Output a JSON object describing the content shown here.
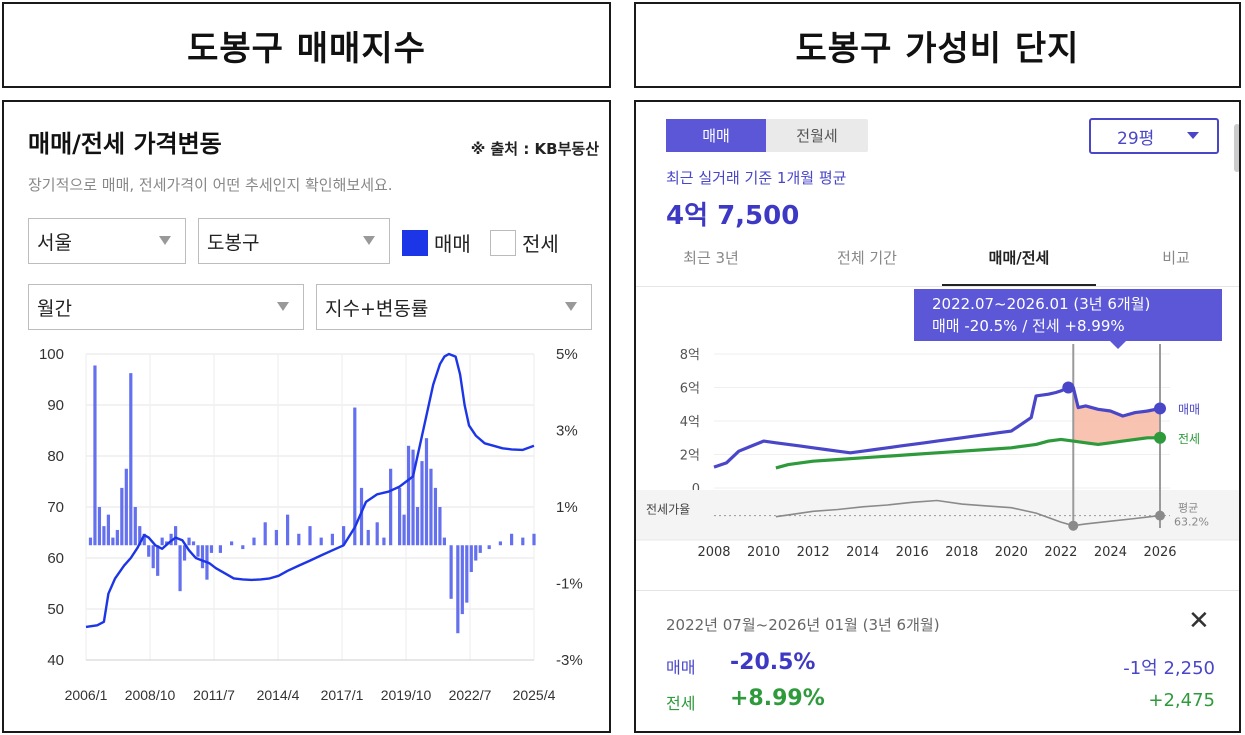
{
  "headers": {
    "left": "도봉구 매매지수",
    "right": "도봉구 가성비 단지"
  },
  "kb_panel": {
    "title": "매매/전세 가격변동",
    "source": "※ 출처 : KB부동산",
    "subtitle": "장기적으로 매매, 전세가격이 어떤 추세인지 확인해보세요.",
    "selects": {
      "region": "서울",
      "district": "도봉구",
      "period": "월간",
      "mode": "지수+변동률"
    },
    "checkboxes": {
      "sale": "매매",
      "jeonse": "전세"
    }
  },
  "apt_panel": {
    "toggle": {
      "sale": "매매",
      "rent": "전월세"
    },
    "size_select": "29평",
    "caption": "최근 실거래 기준 1개월 평균",
    "price": "4억 7,500",
    "tabs": [
      "최근 3년",
      "전체 기간",
      "매매/전세",
      "비교"
    ],
    "tooltip": {
      "line1": "2022.07~2026.01 (3년 6개월)",
      "line2": "매매 -20.5%  /  전세 +8.99%"
    },
    "summary": {
      "period": "2022년 07월~2026년 01월 (3년 6개월)",
      "close": "✕",
      "sale_label": "매매",
      "sale_pct": "-20.5%",
      "sale_amount": "-1억 2,250",
      "jeonse_label": "전세",
      "jeonse_pct": "+8.99%",
      "jeonse_amount": "+2,475"
    }
  },
  "colors": {
    "kb_blue": "#1c35e6",
    "bar_blue": "#6470ee",
    "sale_purple": "#4a46c8",
    "jeonse_green": "#2e9a3c",
    "gap_fill": "#f7b9a2",
    "ratio_gray": "#8a8a8a"
  },
  "chart_data": [
    {
      "type": "line",
      "name": "kb-index-chart",
      "x_tick_labels": [
        "2006/1",
        "2008/10",
        "2011/7",
        "2014/4",
        "2017/1",
        "2019/10",
        "2022/7",
        "2025/4"
      ],
      "y_left_ticks": [
        "100",
        "90",
        "80",
        "70",
        "60",
        "50",
        "40"
      ],
      "y_right_ticks": [
        "5%",
        "3%",
        "1%",
        "-1%",
        "-3%"
      ],
      "ylim_left": [
        40,
        100
      ],
      "ylim_right": [
        -3,
        5
      ],
      "xlim": [
        2006.0,
        2026.0
      ],
      "grid": true,
      "series": [
        {
          "kind": "line",
          "x": [
            2006.0,
            2006.5,
            2006.8,
            2007.0,
            2007.3,
            2007.7,
            2008.0,
            2008.3,
            2008.6,
            2008.8,
            2009.1,
            2009.4,
            2009.7,
            2010.0,
            2010.3,
            2010.6,
            2010.9,
            2011.2,
            2011.5,
            2011.8,
            2012.2,
            2012.6,
            2013.0,
            2013.4,
            2013.8,
            2014.2,
            2014.6,
            2015.0,
            2015.5,
            2016.0,
            2016.5,
            2017.0,
            2017.5,
            2018.0,
            2018.5,
            2019.0,
            2019.5,
            2020.0,
            2020.3,
            2020.6,
            2020.9,
            2021.2,
            2021.5,
            2021.8,
            2022.0,
            2022.2,
            2022.5,
            2022.7,
            2022.9,
            2023.1,
            2023.4,
            2023.8,
            2024.2,
            2024.6,
            2025.0,
            2025.5,
            2026.0
          ],
          "values": [
            46.5,
            46.8,
            47.5,
            53.0,
            56.0,
            58.5,
            60.0,
            62.0,
            64.5,
            64.0,
            62.5,
            61.8,
            63.0,
            64.0,
            63.5,
            61.5,
            60.0,
            59.5,
            59.0,
            58.0,
            57.0,
            56.0,
            55.8,
            55.7,
            55.8,
            56.0,
            56.5,
            57.5,
            58.5,
            59.5,
            60.5,
            61.5,
            62.5,
            66.0,
            71.0,
            72.5,
            73.0,
            74.0,
            75.0,
            76.0,
            82.0,
            88.0,
            94.0,
            98.0,
            99.5,
            100.0,
            99.5,
            96.0,
            90.0,
            86.0,
            84.0,
            82.5,
            82.0,
            81.5,
            81.3,
            81.2,
            82.0
          ]
        },
        {
          "kind": "bar",
          "axis": "right",
          "x": [
            2006.2,
            2006.4,
            2006.6,
            2006.8,
            2007.0,
            2007.2,
            2007.4,
            2007.6,
            2007.8,
            2008.0,
            2008.2,
            2008.4,
            2008.6,
            2008.8,
            2009.0,
            2009.2,
            2009.4,
            2009.6,
            2009.8,
            2010.0,
            2010.2,
            2010.4,
            2010.6,
            2010.8,
            2011.0,
            2011.2,
            2011.4,
            2011.6,
            2012.0,
            2012.5,
            2013.0,
            2013.5,
            2014.0,
            2014.5,
            2015.0,
            2015.5,
            2016.0,
            2016.5,
            2017.0,
            2017.5,
            2018.0,
            2018.3,
            2018.6,
            2019.0,
            2019.3,
            2019.6,
            2020.0,
            2020.2,
            2020.4,
            2020.6,
            2020.8,
            2021.0,
            2021.2,
            2021.4,
            2021.6,
            2021.8,
            2022.0,
            2022.3,
            2022.6,
            2022.8,
            2023.0,
            2023.2,
            2023.4,
            2023.6,
            2024.0,
            2024.5,
            2025.0,
            2025.5,
            2026.0
          ],
          "values": [
            0.2,
            4.7,
            1.0,
            0.5,
            0.8,
            0.2,
            0.4,
            1.5,
            2.0,
            4.5,
            1.0,
            0.5,
            0.3,
            -0.3,
            -0.6,
            -0.8,
            0.2,
            0.1,
            0.3,
            0.5,
            -1.2,
            -0.4,
            0.2,
            0.1,
            -0.3,
            -0.6,
            -0.9,
            -0.2,
            -0.2,
            0.1,
            -0.1,
            0.2,
            0.6,
            0.4,
            0.8,
            0.3,
            0.5,
            0.2,
            0.3,
            0.5,
            3.6,
            1.5,
            0.4,
            0.6,
            0.2,
            2.0,
            1.5,
            0.8,
            2.6,
            2.5,
            1.0,
            2.2,
            2.8,
            2.0,
            1.5,
            1.0,
            0.2,
            -1.4,
            -2.3,
            -1.8,
            -1.5,
            -0.7,
            -0.4,
            -0.2,
            -0.1,
            0.1,
            0.3,
            0.2,
            0.3
          ]
        }
      ]
    },
    {
      "type": "line",
      "name": "apartment-price-chart",
      "x_tick_labels": [
        "2008",
        "2010",
        "2012",
        "2014",
        "2016",
        "2018",
        "2020",
        "2022",
        "2024",
        "2026"
      ],
      "y_ticks": [
        "8억",
        "6억",
        "4억",
        "2억",
        "0"
      ],
      "ylim": [
        0,
        8
      ],
      "xlim": [
        2008,
        2026
      ],
      "ratio_label": "전세가율",
      "ratio_end_label": "평균",
      "ratio_end_value": "63.2%",
      "highlight_range": [
        2022.5,
        2026.0
      ],
      "series": [
        {
          "name": "매매",
          "x": [
            2008.0,
            2008.5,
            2009.0,
            2009.5,
            2010.0,
            2010.5,
            2011.0,
            2011.5,
            2012.0,
            2012.5,
            2013.0,
            2013.5,
            2014.0,
            2014.5,
            2015.0,
            2015.5,
            2016.0,
            2016.5,
            2017.0,
            2017.5,
            2018.0,
            2018.5,
            2019.0,
            2019.5,
            2020.0,
            2020.5,
            2020.8,
            2021.0,
            2021.5,
            2021.8,
            2022.0,
            2022.3,
            2022.5,
            2022.7,
            2023.0,
            2023.5,
            2024.0,
            2024.5,
            2025.0,
            2025.5,
            2026.0
          ],
          "values": [
            1.25,
            1.5,
            2.2,
            2.5,
            2.8,
            2.7,
            2.6,
            2.5,
            2.4,
            2.3,
            2.2,
            2.1,
            2.2,
            2.3,
            2.4,
            2.5,
            2.6,
            2.7,
            2.8,
            2.9,
            3.0,
            3.1,
            3.2,
            3.3,
            3.4,
            3.9,
            4.2,
            5.5,
            5.6,
            5.7,
            5.8,
            6.0,
            6.0,
            4.8,
            4.9,
            4.7,
            4.6,
            4.3,
            4.5,
            4.6,
            4.75
          ]
        },
        {
          "name": "전세",
          "x": [
            2010.5,
            2011.0,
            2012.0,
            2013.0,
            2014.0,
            2015.0,
            2016.0,
            2017.0,
            2018.0,
            2019.0,
            2020.0,
            2021.0,
            2021.5,
            2022.0,
            2022.5,
            2023.0,
            2023.5,
            2024.0,
            2024.5,
            2025.0,
            2025.5,
            2026.0
          ],
          "values": [
            1.2,
            1.4,
            1.6,
            1.7,
            1.8,
            1.9,
            2.0,
            2.1,
            2.2,
            2.3,
            2.4,
            2.6,
            2.8,
            2.9,
            2.8,
            2.7,
            2.6,
            2.7,
            2.8,
            2.9,
            3.0,
            3.0
          ]
        },
        {
          "name": "전세가율",
          "x": [
            2010.5,
            2011.0,
            2012.0,
            2013.0,
            2014.0,
            2015.0,
            2016.0,
            2017.0,
            2018.0,
            2019.0,
            2020.0,
            2021.0,
            2022.0,
            2022.5,
            2023.0,
            2024.0,
            2025.0,
            2026.0
          ],
          "values": [
            62,
            64,
            68,
            70,
            73,
            75,
            78,
            80,
            76,
            74,
            72,
            66,
            56,
            52,
            54,
            57,
            60,
            63.2
          ]
        }
      ]
    }
  ]
}
